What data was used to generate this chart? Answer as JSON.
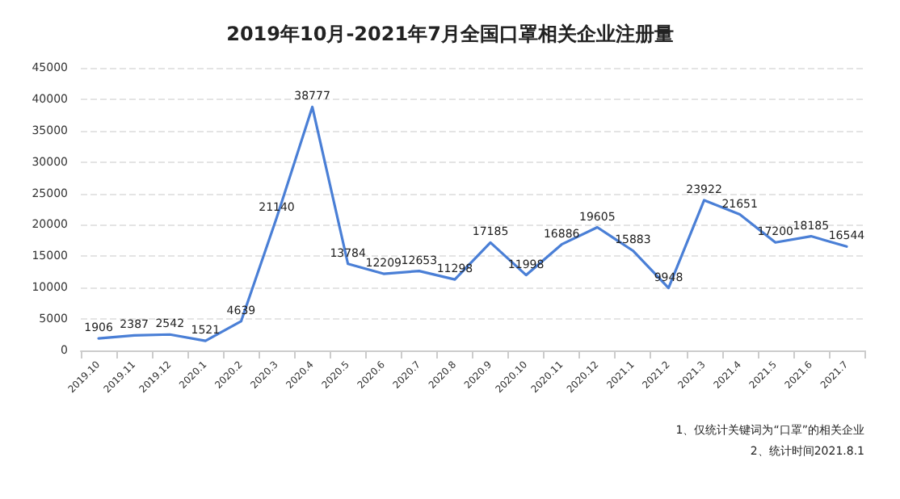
{
  "chart_data": {
    "type": "line",
    "title": "2019年10月-2021年7月全国口罩相关企业注册量",
    "categories": [
      "2019.10",
      "2019.11",
      "2019.12",
      "2020.1",
      "2020.2",
      "2020.3",
      "2020.4",
      "2020.5",
      "2020.6",
      "2020.7",
      "2020.8",
      "2020.9",
      "2020.10",
      "2020.11",
      "2020.12",
      "2021.1",
      "2021.2",
      "2021.3",
      "2021.4",
      "2021.5",
      "2021.6",
      "2021.7"
    ],
    "series": [
      {
        "color": "#4a7fd6",
        "values": [
          1906,
          2387,
          2542,
          1521,
          4639,
          21140,
          38777,
          13784,
          12209,
          12653,
          11298,
          17185,
          11998,
          16886,
          19605,
          15883,
          9948,
          23922,
          21651,
          17200,
          18185,
          16544
        ]
      }
    ],
    "ylim": [
      0,
      45000
    ],
    "yticks": [
      0,
      5000,
      10000,
      15000,
      20000,
      25000,
      30000,
      35000,
      40000,
      45000
    ],
    "grid": "y",
    "marker": "none",
    "line_style": "solid",
    "data_labels": true,
    "annotations": [
      "1、仅统计关键词为“口罩”的相关企业",
      "2、统计时间2021.8.1"
    ]
  }
}
